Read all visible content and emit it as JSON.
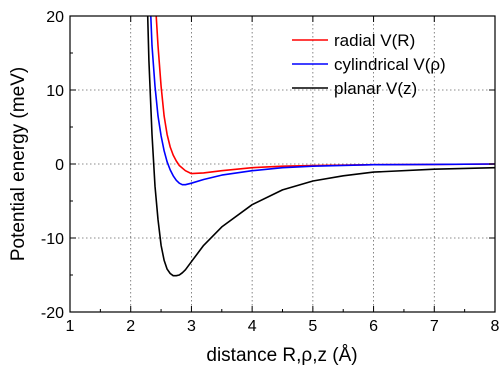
{
  "chart_data": {
    "type": "line",
    "title": "",
    "xlabel": "distance R,ρ,z (Å)",
    "ylabel": "Potential energy (meV)",
    "xlim": [
      1,
      8
    ],
    "ylim": [
      -20,
      20
    ],
    "xticks": [
      1,
      2,
      3,
      4,
      5,
      6,
      7,
      8
    ],
    "xtick_labels": [
      "1",
      "2",
      "3",
      "4",
      "5",
      "6",
      "7",
      "8"
    ],
    "yticks": [
      -20,
      -10,
      0,
      10,
      20
    ],
    "ytick_labels": [
      "-20",
      "-10",
      "0",
      "10",
      "20"
    ],
    "grid": true,
    "legend_position": "top-right",
    "series": [
      {
        "name": "radial V(R)",
        "color": "#ff0000",
        "x": [
          2.42,
          2.45,
          2.5,
          2.55,
          2.6,
          2.65,
          2.7,
          2.75,
          2.8,
          2.9,
          3.0,
          3.2,
          3.5,
          4.0,
          4.5,
          5.0,
          6.0,
          7.0,
          8.0
        ],
        "y": [
          20,
          16,
          10.5,
          6.5,
          4,
          2.3,
          1.2,
          0.4,
          -0.2,
          -0.9,
          -1.3,
          -1.2,
          -0.9,
          -0.5,
          -0.3,
          -0.2,
          -0.1,
          -0.05,
          0
        ]
      },
      {
        "name": "cylindrical V(ρ)",
        "color": "#0000ff",
        "x": [
          2.33,
          2.35,
          2.4,
          2.45,
          2.5,
          2.55,
          2.6,
          2.65,
          2.7,
          2.75,
          2.8,
          2.85,
          2.9,
          3.0,
          3.2,
          3.5,
          4.0,
          4.5,
          5.0,
          6.0,
          7.0,
          8.0
        ],
        "y": [
          20,
          16,
          10.5,
          6.5,
          3.8,
          1.8,
          0.3,
          -0.8,
          -1.6,
          -2.2,
          -2.6,
          -2.8,
          -2.8,
          -2.6,
          -2.1,
          -1.5,
          -0.9,
          -0.5,
          -0.3,
          -0.1,
          -0.05,
          0
        ]
      },
      {
        "name": "planar V(z)",
        "color": "#000000",
        "x": [
          2.28,
          2.3,
          2.35,
          2.4,
          2.45,
          2.5,
          2.55,
          2.6,
          2.65,
          2.7,
          2.75,
          2.8,
          2.85,
          2.9,
          3.0,
          3.2,
          3.5,
          4.0,
          4.5,
          5.0,
          5.5,
          6.0,
          7.0,
          8.0
        ],
        "y": [
          20,
          14,
          4,
          -3,
          -7.5,
          -11,
          -13,
          -14.2,
          -14.8,
          -15.1,
          -15.1,
          -15,
          -14.7,
          -14.3,
          -13.2,
          -11,
          -8.5,
          -5.5,
          -3.5,
          -2.3,
          -1.6,
          -1.1,
          -0.7,
          -0.5
        ]
      }
    ]
  }
}
